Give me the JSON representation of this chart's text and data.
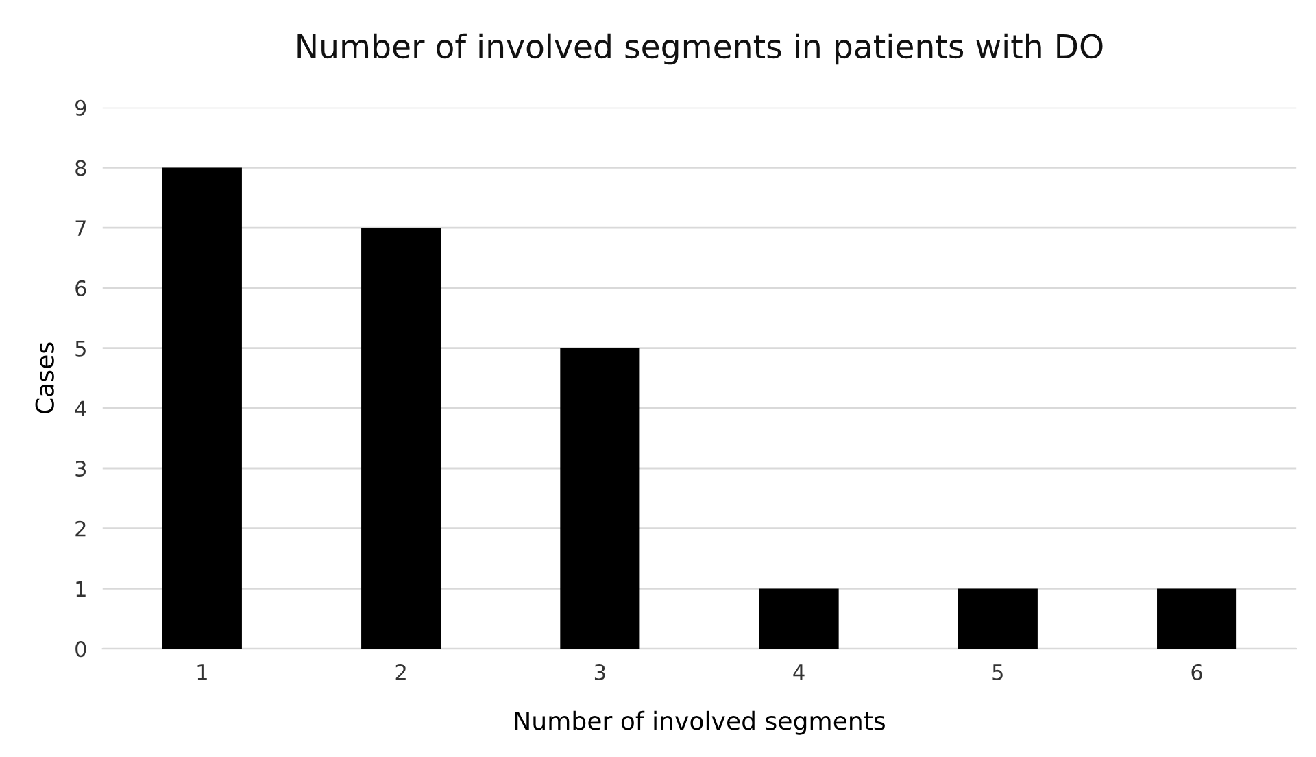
{
  "chart_data": {
    "type": "bar",
    "title": "Number of involved segments in patients with DO",
    "xlabel": "Number of involved segments",
    "ylabel": "Cases",
    "categories": [
      "1",
      "2",
      "3",
      "4",
      "5",
      "6"
    ],
    "values": [
      8,
      7,
      5,
      1,
      1,
      1
    ],
    "color": "#000000",
    "ylim": [
      0,
      9
    ],
    "yticks": [
      0,
      1,
      2,
      3,
      4,
      5,
      6,
      7,
      8,
      9
    ],
    "grid": "y"
  }
}
